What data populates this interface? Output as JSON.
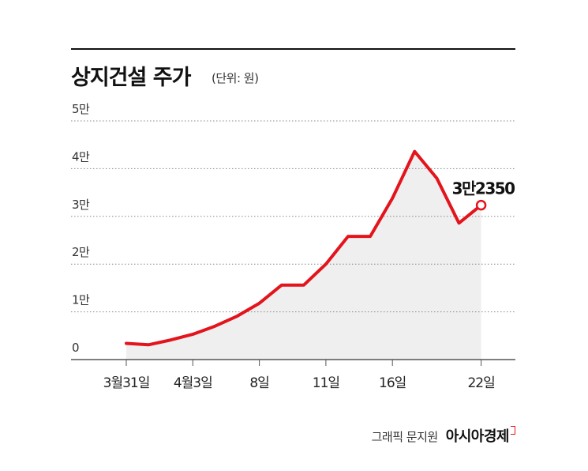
{
  "header": {
    "title": "상지건설 주가",
    "unit": "(단위: 원)"
  },
  "chart_data": {
    "type": "area",
    "title": "상지건설 주가",
    "unit_label": "(단위: 원)",
    "y_ticks": [
      {
        "value": 0,
        "label": "0"
      },
      {
        "value": 10000,
        "label": "1만"
      },
      {
        "value": 20000,
        "label": "2만"
      },
      {
        "value": 30000,
        "label": "3만"
      },
      {
        "value": 40000,
        "label": "4만"
      },
      {
        "value": 50000,
        "label": "5만"
      }
    ],
    "ylim": [
      0,
      50000
    ],
    "grid": true,
    "x_labels": [
      {
        "index": 0,
        "label": "3월31일"
      },
      {
        "index": 3,
        "label": "4월3일"
      },
      {
        "index": 6,
        "label": "8일"
      },
      {
        "index": 9,
        "label": "11일"
      },
      {
        "index": 12,
        "label": "16일"
      },
      {
        "index": 16,
        "label": "22일"
      }
    ],
    "values": [
      3400,
      3100,
      4100,
      5300,
      7000,
      9100,
      11800,
      15600,
      15600,
      20000,
      25800,
      25800,
      33800,
      43600,
      38000,
      28600,
      32350
    ],
    "last_label": "3만2350",
    "colors": {
      "line": "#e3141b",
      "area": "#efefef",
      "grid": "#888888",
      "axis": "#555555"
    }
  },
  "footer": {
    "credit": "그래픽 문지원",
    "brand": "아시아경제"
  }
}
